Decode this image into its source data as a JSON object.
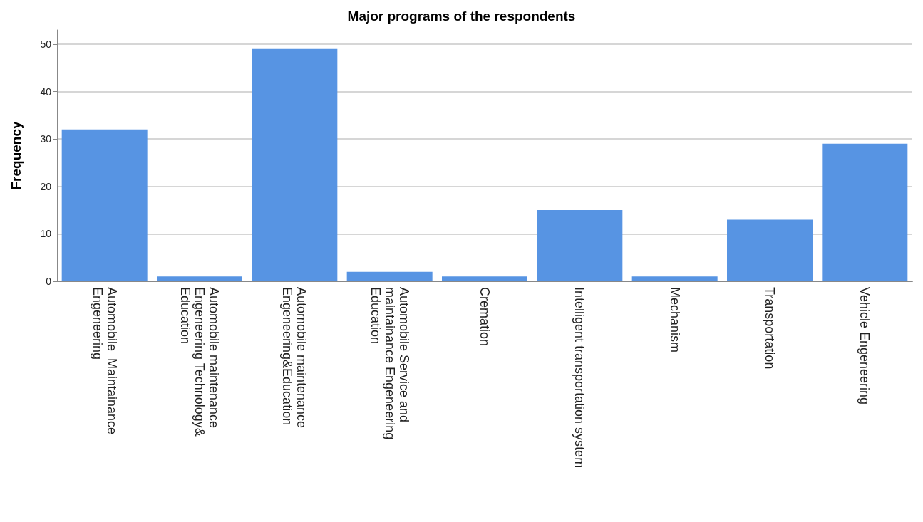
{
  "chart_data": {
    "type": "bar",
    "title": "Major programs of the respondents",
    "ylabel": "Frequency",
    "categories": [
      "Automobile  Maintainance Engeneering",
      "Automobile maintenance Engeneering Technology&Education",
      "Automobile maintenance Engeneering&Education",
      "Automobile Service and maintainance Engeneering Education",
      "Cremation",
      "Intelligent transportation system",
      "Mechanism",
      "Transportation",
      "Vehicle Engeneering"
    ],
    "values": [
      32,
      1,
      49,
      2,
      1,
      15,
      1,
      13,
      29
    ],
    "color": "#5794e3",
    "ylim": [
      0,
      53
    ],
    "yticks": [
      0,
      10,
      20,
      30,
      40,
      50
    ],
    "grid": "y"
  }
}
